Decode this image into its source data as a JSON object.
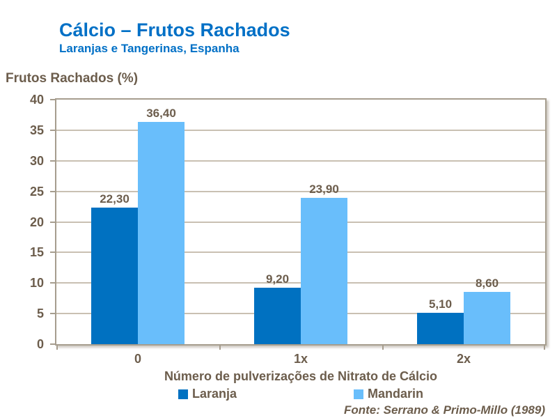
{
  "header": {
    "title": "Cálcio – Frutos Rachados",
    "subtitle": "Laranjas e Tangerinas, Espanha"
  },
  "colors": {
    "title_blue": "#0070C6",
    "text_brown": "#6C5D4C",
    "gridline": "#C9C0B2",
    "axis_border": "#A69D8E",
    "series_laranja": "#0071C1",
    "series_mandarin": "#69BEFB"
  },
  "chart_data": {
    "type": "bar",
    "title": "Cálcio – Frutos Rachados",
    "subtitle": "Laranjas e Tangerinas, Espanha",
    "ylabel": "Frutos Rachados (%)",
    "xlabel": "Número de pulverizações de Nitrato de Cálcio",
    "categories": [
      "0",
      "1x",
      "2x"
    ],
    "series": [
      {
        "name": "Laranja",
        "color": "#0071C1",
        "values": [
          22.3,
          9.2,
          5.1
        ],
        "labels": [
          "22,30",
          "9,20",
          "5,10"
        ]
      },
      {
        "name": "Mandarin",
        "color": "#69BEFB",
        "values": [
          36.4,
          23.9,
          8.6
        ],
        "labels": [
          "36,40",
          "23,90",
          "8,60"
        ]
      }
    ],
    "ylim": [
      0,
      40
    ],
    "ytick_step": 5,
    "yticks": [
      "0",
      "5",
      "10",
      "15",
      "20",
      "25",
      "30",
      "35",
      "40"
    ],
    "grid": true,
    "legend_position": "bottom",
    "source": "Fonte: Serrano & Primo-Millo (1989)"
  }
}
